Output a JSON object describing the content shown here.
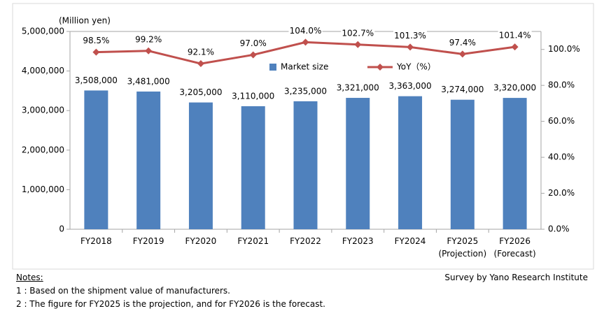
{
  "chart_data": {
    "type": "bar-line",
    "y_label": "(Million yen)",
    "categories": [
      "FY2018",
      "FY2019",
      "FY2020",
      "FY2021",
      "FY2022",
      "FY2023",
      "FY2024",
      "FY2025 (Projection)",
      "FY2026 (Forecast)"
    ],
    "series": [
      {
        "name": "Market size",
        "type": "bar",
        "color": "#4f81bd",
        "values": [
          3508000,
          3481000,
          3205000,
          3110000,
          3235000,
          3321000,
          3363000,
          3274000,
          3320000
        ],
        "value_labels": [
          "3,508,000",
          "3,481,000",
          "3,205,000",
          "3,110,000",
          "3,235,000",
          "3,321,000",
          "3,363,000",
          "3,274,000",
          "3,320,000"
        ]
      },
      {
        "name": "YoY（%）",
        "type": "line",
        "axis": "y2",
        "color": "#c0504d",
        "values": [
          98.5,
          99.2,
          92.1,
          97.0,
          104.0,
          102.7,
          101.3,
          97.4,
          101.4
        ],
        "value_labels": [
          "98.5%",
          "99.2%",
          "92.1%",
          "97.0%",
          "104.0%",
          "102.7%",
          "101.3%",
          "97.4%",
          "101.4%"
        ]
      }
    ],
    "ylim": [
      0,
      5000000
    ],
    "yticks": [
      0,
      {
        "value": 1000000,
        "label": "1,000,000"
      },
      {
        "value": 2000000,
        "label": "2,000,000"
      },
      {
        "value": 3000000,
        "label": "3,000,000"
      },
      {
        "value": 4000000,
        "label": "4,000,000"
      },
      {
        "value": 5000000,
        "label": "5,000,000"
      }
    ],
    "y2lim": [
      0,
      110
    ],
    "y2ticks": [
      {
        "value": 0,
        "label": "0.0%"
      },
      {
        "value": 20,
        "label": "20.0%"
      },
      {
        "value": 40,
        "label": "40.0%"
      },
      {
        "value": 60,
        "label": "60.0%"
      },
      {
        "value": 80,
        "label": "80.0%"
      },
      {
        "value": 100,
        "label": "100.0%"
      }
    ],
    "legend": "top-center",
    "grid": false
  },
  "notes": {
    "title": "Notes:",
    "items": [
      "1 : Based on the shipment value of manufacturers.",
      "2 : The figure for FY2025 is the projection, and for FY2026 is the forecast."
    ]
  },
  "source": "Survey by Yano Research Institute"
}
